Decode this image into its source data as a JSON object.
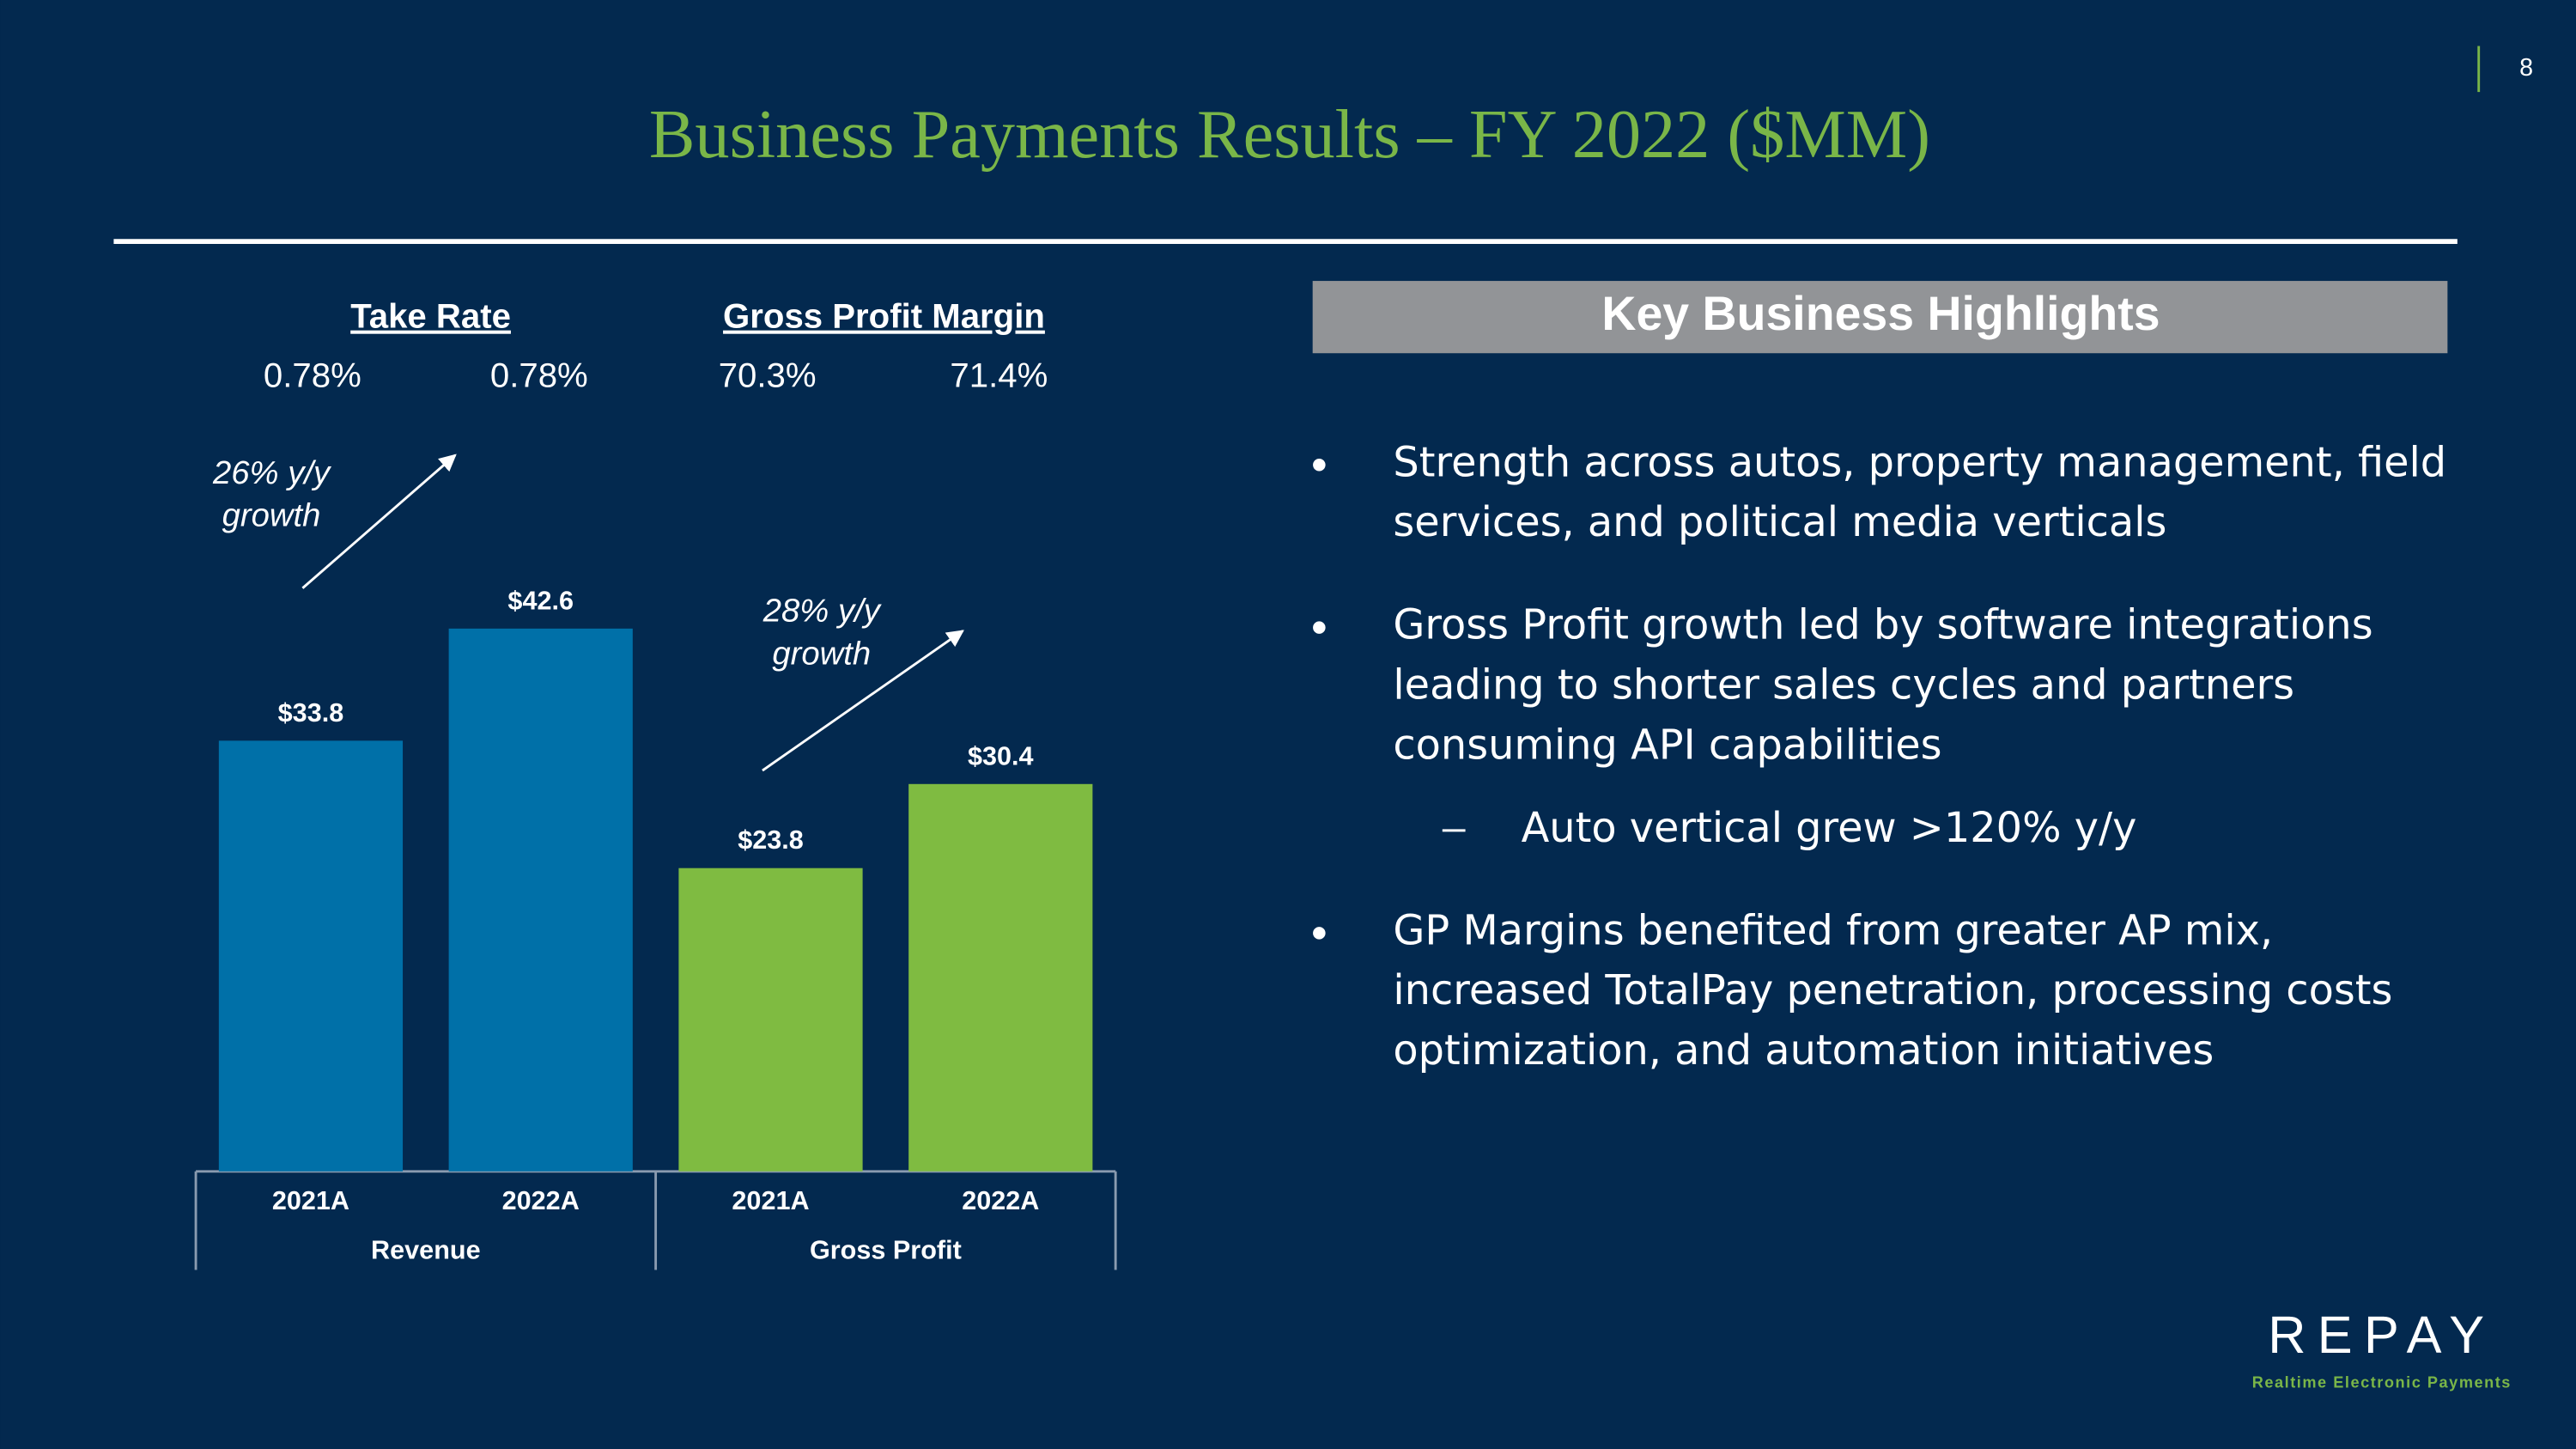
{
  "page_number": "8",
  "title": "Business Payments Results – FY 2022 ($MM)",
  "chart_data": {
    "type": "bar",
    "metrics": [
      {
        "name": "Take Rate",
        "values": [
          "0.78%",
          "0.78%"
        ]
      },
      {
        "name": "Gross Profit Margin",
        "values": [
          "70.3%",
          "71.4%"
        ]
      }
    ],
    "series": [
      {
        "name": "Revenue",
        "color": "#0070a8",
        "categories": [
          "2021A",
          "2022A"
        ],
        "values": [
          33.8,
          42.6
        ],
        "value_labels": [
          "$33.8",
          "$42.6"
        ]
      },
      {
        "name": "Gross Profit",
        "color": "#7fbb41",
        "categories": [
          "2021A",
          "2022A"
        ],
        "values": [
          23.8,
          30.4
        ],
        "value_labels": [
          "$23.8",
          "$30.4"
        ]
      }
    ],
    "annotations": [
      {
        "lines": [
          "26% y/y",
          "growth"
        ]
      },
      {
        "lines": [
          "28% y/y",
          "growth"
        ]
      }
    ],
    "ylim": [
      0,
      45
    ]
  },
  "highlights": {
    "heading": "Key Business Highlights",
    "bullets": [
      {
        "lines": [
          "Strength across autos, property management, field",
          "services, and political media verticals"
        ]
      },
      {
        "lines": [
          "Gross Profit growth led by software integrations",
          "leading to shorter sales cycles and partners",
          "consuming API capabilities"
        ],
        "sub": [
          "Auto vertical grew >120% y/y"
        ]
      },
      {
        "lines": [
          "GP Margins benefited from greater AP mix,",
          "increased TotalPay penetration, processing costs",
          "optimization, and automation initiatives"
        ]
      }
    ]
  },
  "logo": {
    "name": "REPAY",
    "tagline": "Realtime Electronic Payments"
  }
}
